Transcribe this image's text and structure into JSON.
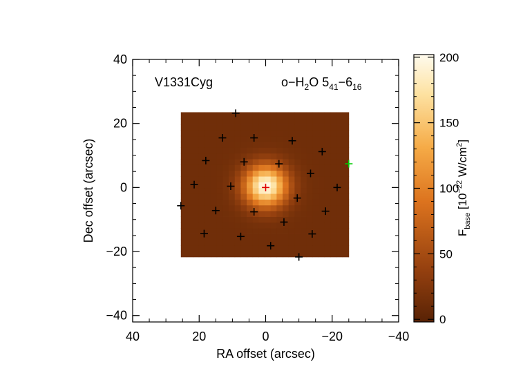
{
  "chart_data": {
    "type": "heatmap",
    "xlabel": "RA offset (arcsec)",
    "ylabel": "Dec offset (arcsec)",
    "xlim": [
      40,
      -40
    ],
    "ylim": [
      -42,
      40
    ],
    "xticks": [
      40,
      20,
      0,
      -20,
      -40
    ],
    "yticks": [
      -40,
      -20,
      0,
      20,
      40
    ],
    "xtick_labels": [
      "40",
      "20",
      "0",
      "−20",
      "−40"
    ],
    "ytick_labels": [
      "−40",
      "−20",
      "0",
      "20",
      "40"
    ],
    "annotations": {
      "source": "V1331Cyg",
      "line_prefix": "o−H",
      "line_sub1": "2",
      "line_mid": "O 5",
      "line_sub2": "41",
      "line_dash": "−6",
      "line_sub3": "16"
    },
    "map": {
      "ra_range": [
        25.5,
        -25
      ],
      "dec_range": [
        -21.7,
        23.5
      ],
      "peak_ra": 0,
      "peak_dec": 0.5,
      "peak_value": 200,
      "fwhm_arcsec": 10.5,
      "background": 14
    },
    "spaxels_black": [
      [
        9,
        23.2
      ],
      [
        13,
        15.5
      ],
      [
        3.5,
        15.5
      ],
      [
        -8,
        14.6
      ],
      [
        -17,
        11.2
      ],
      [
        18,
        8.4
      ],
      [
        6.5,
        8
      ],
      [
        -4,
        7.4
      ],
      [
        -13.5,
        4.4
      ],
      [
        21.5,
        0.9
      ],
      [
        10.5,
        0.4
      ],
      [
        -21.5,
        0
      ],
      [
        25.5,
        -5.7
      ],
      [
        -9.5,
        -3.3
      ],
      [
        15,
        -7.2
      ],
      [
        3.5,
        -7.6
      ],
      [
        -18,
        -7.4
      ],
      [
        -5.5,
        -10.8
      ],
      [
        18.5,
        -14.4
      ],
      [
        7.5,
        -15.3
      ],
      [
        -14,
        -14.5
      ],
      [
        -1.5,
        -18.2
      ],
      [
        -10,
        -21.7
      ]
    ],
    "spaxel_central": [
      0,
      0
    ],
    "spaxel_green": [
      -25,
      7.4
    ],
    "colorbar": {
      "range": [
        -2,
        202
      ],
      "ticks": [
        0,
        50,
        100,
        150,
        200
      ],
      "tick_labels": [
        "0",
        "50",
        "100",
        "150",
        "200"
      ],
      "label_F": "F",
      "label_sub": "base",
      "label_rest1": " [10",
      "label_sup": "−22",
      "label_rest2": " W/cm",
      "label_sup2": "2",
      "label_end": "]"
    },
    "colors": {
      "cmap_low": "#5a2305",
      "cmap_mid": "#e8801f",
      "cmap_high": "#fffbee",
      "marker_black": "#000000",
      "marker_central": "#e00000",
      "marker_green": "#00cc00"
    }
  }
}
